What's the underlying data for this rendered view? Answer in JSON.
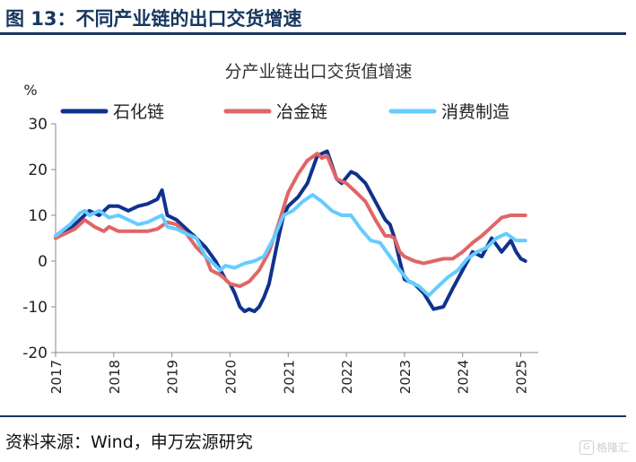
{
  "figure": {
    "title": "图 13：不同产业链的出口交货增速",
    "source": "资料来源：Wind，申万宏源研究",
    "watermark": "格隆汇"
  },
  "chart_data": {
    "type": "line",
    "title": "分产业链出口交货值增速",
    "ylabel": "%",
    "ylim": [
      -20,
      30
    ],
    "yticks": [
      30,
      20,
      10,
      0,
      -10,
      -20
    ],
    "xlim": [
      2017.0,
      2025.3
    ],
    "xticks": [
      "2017",
      "2018",
      "2019",
      "2020",
      "2021",
      "2022",
      "2023",
      "2024",
      "2025"
    ],
    "legend_position": "top",
    "grid": false,
    "series": [
      {
        "name": "石化链",
        "color": "#10328c",
        "points": [
          [
            2017.0,
            5
          ],
          [
            2017.33,
            8
          ],
          [
            2017.58,
            11
          ],
          [
            2017.75,
            10
          ],
          [
            2017.92,
            12
          ],
          [
            2018.08,
            12
          ],
          [
            2018.25,
            11
          ],
          [
            2018.42,
            12
          ],
          [
            2018.58,
            12.5
          ],
          [
            2018.75,
            13.5
          ],
          [
            2018.83,
            15.5
          ],
          [
            2018.92,
            10
          ],
          [
            2019.08,
            9
          ],
          [
            2019.25,
            7
          ],
          [
            2019.42,
            5
          ],
          [
            2019.58,
            3
          ],
          [
            2019.75,
            0
          ],
          [
            2019.92,
            -4
          ],
          [
            2020.0,
            -5
          ],
          [
            2020.08,
            -7
          ],
          [
            2020.17,
            -10
          ],
          [
            2020.25,
            -11
          ],
          [
            2020.33,
            -10.5
          ],
          [
            2020.42,
            -11
          ],
          [
            2020.5,
            -10
          ],
          [
            2020.58,
            -8
          ],
          [
            2020.67,
            -5
          ],
          [
            2020.75,
            0
          ],
          [
            2020.83,
            5
          ],
          [
            2020.92,
            10
          ],
          [
            2021.0,
            12
          ],
          [
            2021.17,
            14
          ],
          [
            2021.33,
            17
          ],
          [
            2021.5,
            23
          ],
          [
            2021.67,
            24
          ],
          [
            2021.83,
            18
          ],
          [
            2021.92,
            17
          ],
          [
            2022.08,
            19.5
          ],
          [
            2022.17,
            19
          ],
          [
            2022.33,
            17
          ],
          [
            2022.5,
            13
          ],
          [
            2022.67,
            9
          ],
          [
            2022.75,
            8
          ],
          [
            2022.83,
            5
          ],
          [
            2022.92,
            0
          ],
          [
            2023.0,
            -4
          ],
          [
            2023.17,
            -5
          ],
          [
            2023.33,
            -7
          ],
          [
            2023.5,
            -10.5
          ],
          [
            2023.67,
            -10
          ],
          [
            2023.83,
            -6
          ],
          [
            2024.0,
            -2
          ],
          [
            2024.17,
            2
          ],
          [
            2024.33,
            1
          ],
          [
            2024.5,
            5
          ],
          [
            2024.67,
            2
          ],
          [
            2024.83,
            4.5
          ],
          [
            2024.92,
            2
          ],
          [
            2025.0,
            0.5
          ],
          [
            2025.08,
            0
          ]
        ]
      },
      {
        "name": "冶金链",
        "color": "#e06666",
        "points": [
          [
            2017.0,
            5
          ],
          [
            2017.33,
            7
          ],
          [
            2017.5,
            9
          ],
          [
            2017.67,
            7.5
          ],
          [
            2017.83,
            6.5
          ],
          [
            2017.92,
            7.5
          ],
          [
            2018.08,
            6.5
          ],
          [
            2018.25,
            6.5
          ],
          [
            2018.42,
            6.5
          ],
          [
            2018.58,
            6.5
          ],
          [
            2018.75,
            7
          ],
          [
            2018.92,
            8.5
          ],
          [
            2019.08,
            8
          ],
          [
            2019.25,
            6
          ],
          [
            2019.42,
            3
          ],
          [
            2019.58,
            1
          ],
          [
            2019.67,
            -2
          ],
          [
            2019.83,
            -3
          ],
          [
            2019.92,
            -4
          ],
          [
            2020.0,
            -5
          ],
          [
            2020.17,
            -5.5
          ],
          [
            2020.33,
            -4.5
          ],
          [
            2020.5,
            -2
          ],
          [
            2020.67,
            2
          ],
          [
            2020.83,
            8
          ],
          [
            2021.0,
            15
          ],
          [
            2021.17,
            19
          ],
          [
            2021.33,
            22
          ],
          [
            2021.5,
            23.5
          ],
          [
            2021.58,
            22.5
          ],
          [
            2021.67,
            23
          ],
          [
            2021.83,
            18
          ],
          [
            2022.0,
            17
          ],
          [
            2022.17,
            15
          ],
          [
            2022.33,
            13
          ],
          [
            2022.5,
            9
          ],
          [
            2022.67,
            5.5
          ],
          [
            2022.75,
            5.5
          ],
          [
            2022.83,
            5
          ],
          [
            2022.92,
            2
          ],
          [
            2023.0,
            1
          ],
          [
            2023.17,
            0
          ],
          [
            2023.33,
            -0.5
          ],
          [
            2023.5,
            0
          ],
          [
            2023.67,
            0.5
          ],
          [
            2023.83,
            0.5
          ],
          [
            2024.0,
            2
          ],
          [
            2024.17,
            4
          ],
          [
            2024.33,
            5.5
          ],
          [
            2024.5,
            7.5
          ],
          [
            2024.67,
            9.5
          ],
          [
            2024.83,
            10
          ],
          [
            2025.0,
            10
          ],
          [
            2025.08,
            10
          ]
        ]
      },
      {
        "name": "消费制造",
        "color": "#66ccff",
        "points": [
          [
            2017.0,
            5.5
          ],
          [
            2017.25,
            8
          ],
          [
            2017.42,
            10.5
          ],
          [
            2017.5,
            11
          ],
          [
            2017.58,
            10
          ],
          [
            2017.75,
            11
          ],
          [
            2017.92,
            9.5
          ],
          [
            2018.08,
            10
          ],
          [
            2018.25,
            9
          ],
          [
            2018.42,
            8
          ],
          [
            2018.58,
            8.5
          ],
          [
            2018.75,
            9.5
          ],
          [
            2018.83,
            10
          ],
          [
            2018.92,
            7.5
          ],
          [
            2019.08,
            7
          ],
          [
            2019.25,
            6
          ],
          [
            2019.42,
            5
          ],
          [
            2019.58,
            1
          ],
          [
            2019.67,
            0
          ],
          [
            2019.83,
            -2
          ],
          [
            2019.92,
            -1
          ],
          [
            2020.08,
            -1.5
          ],
          [
            2020.25,
            -0.5
          ],
          [
            2020.42,
            0
          ],
          [
            2020.58,
            1
          ],
          [
            2020.75,
            5
          ],
          [
            2020.92,
            10
          ],
          [
            2021.08,
            11
          ],
          [
            2021.25,
            13
          ],
          [
            2021.42,
            14.5
          ],
          [
            2021.58,
            13
          ],
          [
            2021.75,
            11
          ],
          [
            2021.92,
            10
          ],
          [
            2022.08,
            10
          ],
          [
            2022.25,
            7
          ],
          [
            2022.42,
            4.5
          ],
          [
            2022.58,
            4
          ],
          [
            2022.75,
            1
          ],
          [
            2022.92,
            -2
          ],
          [
            2023.08,
            -4.5
          ],
          [
            2023.25,
            -5.5
          ],
          [
            2023.42,
            -7.5
          ],
          [
            2023.58,
            -5.5
          ],
          [
            2023.75,
            -3.5
          ],
          [
            2023.92,
            -2
          ],
          [
            2024.08,
            0.5
          ],
          [
            2024.25,
            2
          ],
          [
            2024.42,
            3
          ],
          [
            2024.58,
            5
          ],
          [
            2024.75,
            6
          ],
          [
            2024.92,
            4.5
          ],
          [
            2025.08,
            4.5
          ]
        ]
      }
    ]
  }
}
